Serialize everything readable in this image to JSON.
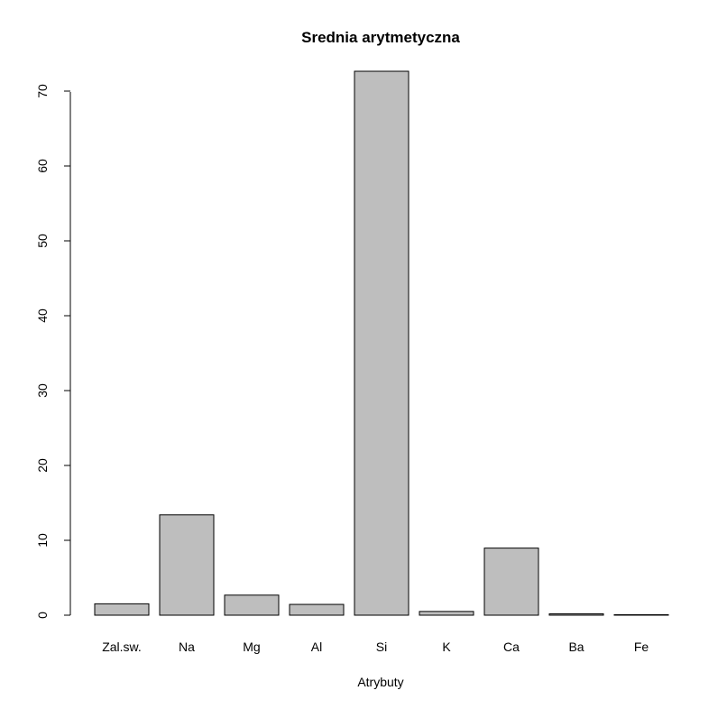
{
  "chart_data": {
    "type": "bar",
    "title": "Srednia arytmetyczna",
    "xlabel": "Atrybuty",
    "ylabel": "",
    "categories": [
      "Zal.sw.",
      "Na",
      "Mg",
      "Al",
      "Si",
      "K",
      "Ca",
      "Ba",
      "Fe"
    ],
    "values": [
      1.52,
      13.4,
      2.68,
      1.44,
      72.65,
      0.5,
      8.96,
      0.18,
      0.06
    ],
    "ylim": [
      0,
      72.65
    ],
    "yticks": [
      "0",
      "10",
      "20",
      "30",
      "40",
      "50",
      "60",
      "70"
    ],
    "grid": false,
    "legend": "none",
    "bar_color": "#bebebe"
  }
}
